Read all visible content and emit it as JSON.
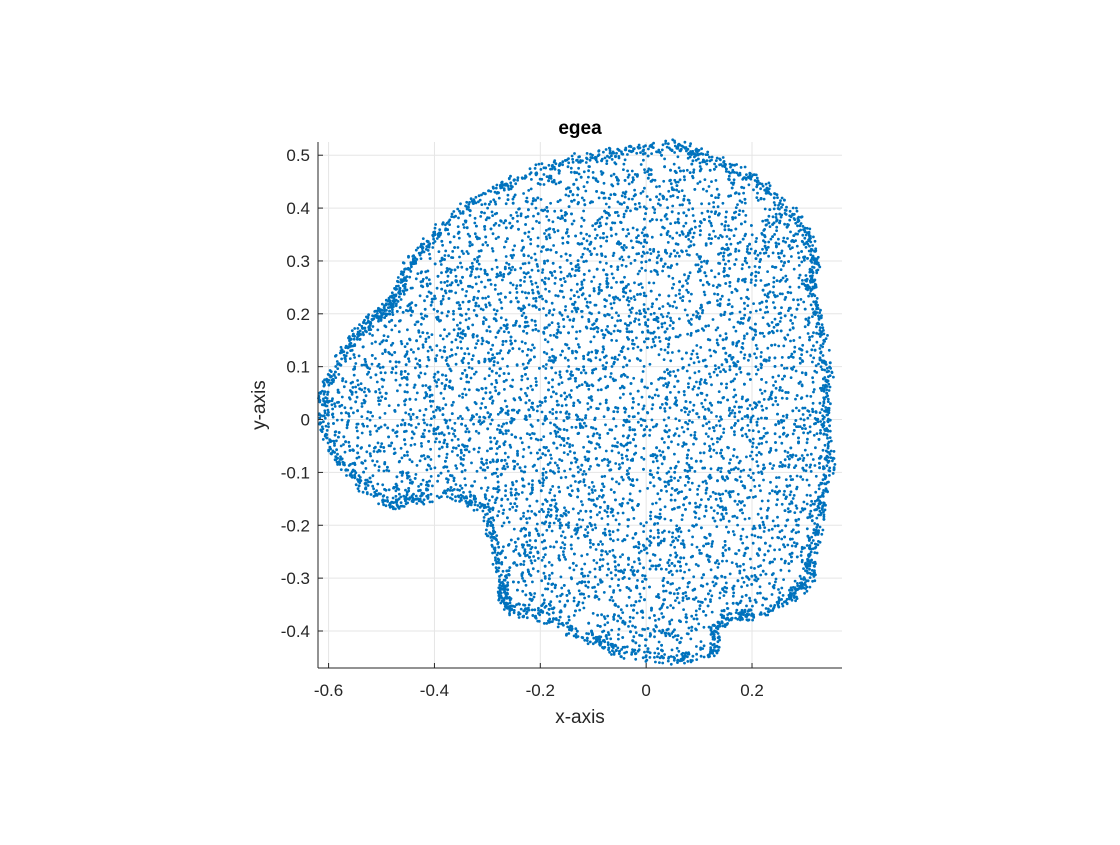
{
  "chart_data": {
    "type": "scatter",
    "title": "egea",
    "xlabel": "x-axis",
    "ylabel": "y-axis",
    "xlim": [
      -0.62,
      0.37
    ],
    "ylim": [
      -0.47,
      0.525
    ],
    "xticks": [
      -0.6,
      -0.4,
      -0.2,
      0,
      0.2
    ],
    "xtick_labels": [
      "-0.6",
      "-0.4",
      "-0.2",
      "0",
      "0.2"
    ],
    "yticks": [
      -0.4,
      -0.3,
      -0.2,
      -0.1,
      0,
      0.1,
      0.2,
      0.3,
      0.4,
      0.5
    ],
    "ytick_labels": [
      "-0.4",
      "-0.3",
      "-0.2",
      "-0.1",
      "0",
      "0.1",
      "0.2",
      "0.3",
      "0.4",
      "0.5"
    ],
    "grid": true,
    "marker_color": "#0072BD",
    "series": [
      {
        "outline": [
          [
            0.06,
            0.52
          ],
          [
            0.13,
            0.49
          ],
          [
            0.2,
            0.46
          ],
          [
            0.26,
            0.41
          ],
          [
            0.3,
            0.36
          ],
          [
            0.32,
            0.3
          ],
          [
            0.31,
            0.25
          ],
          [
            0.33,
            0.18
          ],
          [
            0.345,
            0.08
          ],
          [
            0.34,
            0.0
          ],
          [
            0.35,
            -0.07
          ],
          [
            0.335,
            -0.13
          ],
          [
            0.325,
            -0.2
          ],
          [
            0.31,
            -0.26
          ],
          [
            0.31,
            -0.3
          ],
          [
            0.27,
            -0.34
          ],
          [
            0.2,
            -0.37
          ],
          [
            0.15,
            -0.37
          ],
          [
            0.13,
            -0.4
          ],
          [
            0.13,
            -0.44
          ],
          [
            0.05,
            -0.455
          ],
          [
            -0.05,
            -0.44
          ],
          [
            -0.12,
            -0.41
          ],
          [
            -0.2,
            -0.37
          ],
          [
            -0.26,
            -0.36
          ],
          [
            -0.27,
            -0.34
          ],
          [
            -0.27,
            -0.3
          ],
          [
            -0.29,
            -0.23
          ],
          [
            -0.3,
            -0.17
          ],
          [
            -0.36,
            -0.14
          ],
          [
            -0.43,
            -0.15
          ],
          [
            -0.48,
            -0.16
          ],
          [
            -0.53,
            -0.13
          ],
          [
            -0.58,
            -0.08
          ],
          [
            -0.61,
            -0.02
          ],
          [
            -0.61,
            0.05
          ],
          [
            -0.58,
            0.11
          ],
          [
            -0.55,
            0.16
          ],
          [
            -0.52,
            0.19
          ],
          [
            -0.49,
            0.21
          ],
          [
            -0.47,
            0.24
          ],
          [
            -0.45,
            0.29
          ],
          [
            -0.41,
            0.34
          ],
          [
            -0.35,
            0.4
          ],
          [
            -0.28,
            0.44
          ],
          [
            -0.2,
            0.475
          ],
          [
            -0.11,
            0.5
          ],
          [
            -0.02,
            0.51
          ]
        ],
        "point_count": 9000
      }
    ]
  }
}
